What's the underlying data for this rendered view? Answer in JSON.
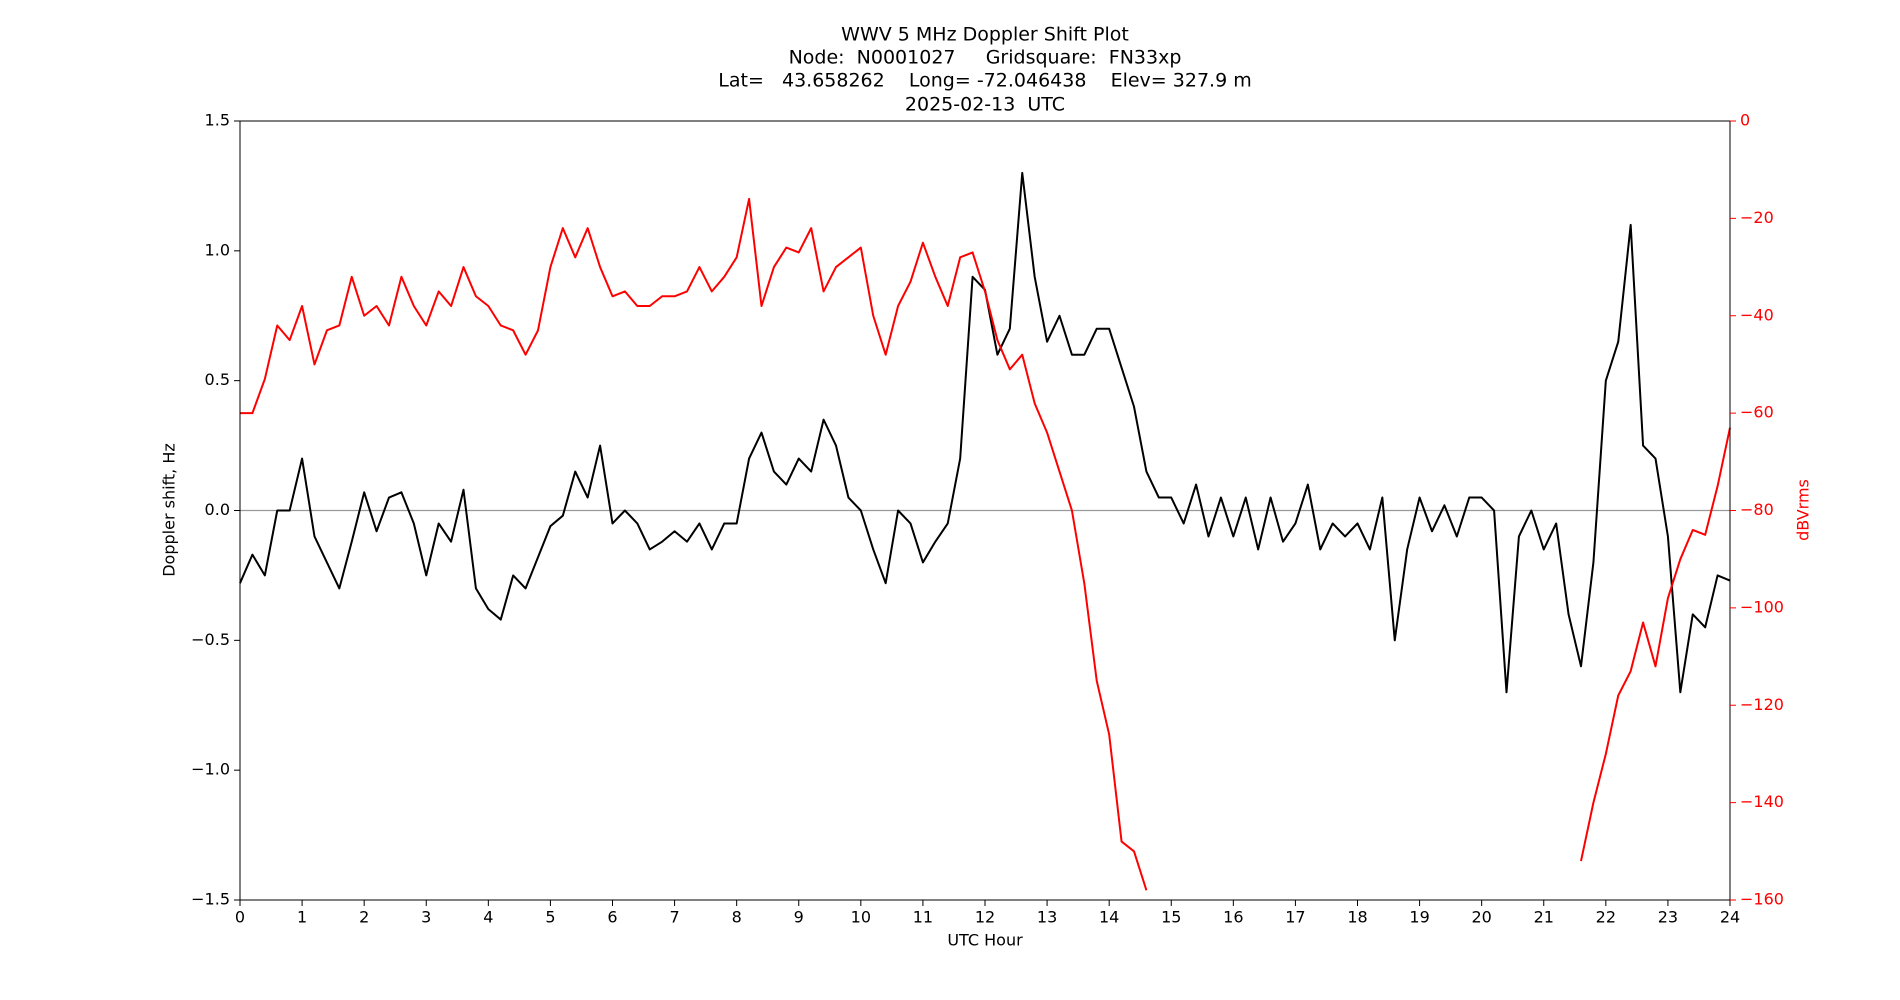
{
  "chart_data": {
    "type": "line",
    "title": [
      "WWV 5 MHz Doppler Shift Plot",
      "Node:  N0001027     Gridsquare:  FN33xp",
      "Lat=   43.658262    Long= -72.046438    Elev= 327.9 m",
      "2025-02-13  UTC"
    ],
    "xlabel": "UTC Hour",
    "ylabel": "Doppler shift, Hz",
    "y2label": "dBVrms",
    "xlim": [
      0,
      24
    ],
    "xticks": [
      0,
      1,
      2,
      3,
      4,
      5,
      6,
      7,
      8,
      9,
      10,
      11,
      12,
      13,
      14,
      15,
      16,
      17,
      18,
      19,
      20,
      21,
      22,
      23,
      24
    ],
    "ylim": [
      -1.5,
      1.5
    ],
    "yticks": [
      {
        "value": -1.5,
        "label": "−1.5"
      },
      {
        "value": -1,
        "label": "−1.0"
      },
      {
        "value": -0.5,
        "label": "−0.5"
      },
      {
        "value": 0,
        "label": "0.0"
      },
      0.5,
      {
        "value": 1,
        "label": "1.0"
      },
      1.5
    ],
    "y2lim": [
      -160,
      0
    ],
    "y2ticks": [
      0,
      {
        "value": -20,
        "label": "−20"
      },
      {
        "value": -40,
        "label": "−40"
      },
      {
        "value": -60,
        "label": "−60"
      },
      {
        "value": -80,
        "label": "−80"
      },
      {
        "value": -100,
        "label": "−100"
      },
      {
        "value": -120,
        "label": "−120"
      },
      {
        "value": -140,
        "label": "−140"
      },
      {
        "value": -160,
        "label": "−160"
      }
    ],
    "y2color": "#ff0000",
    "hline": 0,
    "hline_color": "#999999",
    "x": [
      0,
      0.2,
      0.4,
      0.6,
      0.8,
      1,
      1.2,
      1.4,
      1.6,
      1.8,
      2,
      2.2,
      2.4,
      2.6,
      2.8,
      3,
      3.2,
      3.4,
      3.6,
      3.8,
      4,
      4.2,
      4.4,
      4.6,
      4.8,
      5,
      5.2,
      5.4,
      5.6,
      5.8,
      6,
      6.2,
      6.4,
      6.6,
      6.8,
      7,
      7.2,
      7.4,
      7.6,
      7.8,
      8,
      8.2,
      8.4,
      8.6,
      8.8,
      9,
      9.2,
      9.4,
      9.6,
      9.8,
      10,
      10.2,
      10.4,
      10.6,
      10.8,
      11,
      11.2,
      11.4,
      11.6,
      11.8,
      12,
      12.2,
      12.4,
      12.6,
      12.8,
      13,
      13.2,
      13.4,
      13.6,
      13.8,
      14,
      14.2,
      14.4,
      14.6,
      14.8,
      15,
      15.2,
      15.4,
      15.6,
      15.8,
      16,
      16.2,
      16.4,
      16.6,
      16.8,
      17,
      17.2,
      17.4,
      17.6,
      17.8,
      18,
      18.2,
      18.4,
      18.6,
      18.8,
      19,
      19.2,
      19.4,
      19.6,
      19.8,
      20,
      20.2,
      20.4,
      20.6,
      20.8,
      21,
      21.2,
      21.4,
      21.6,
      21.8,
      22,
      22.2,
      22.4,
      22.6,
      22.8,
      23,
      23.2,
      23.4,
      23.6,
      23.8,
      24
    ],
    "series": [
      {
        "color": "#000000",
        "values": [
          -0.28,
          -0.17,
          -0.25,
          0.0,
          0.0,
          0.2,
          -0.1,
          -0.2,
          -0.3,
          -0.12,
          0.07,
          -0.08,
          0.05,
          0.07,
          -0.05,
          -0.25,
          -0.05,
          -0.12,
          0.08,
          -0.3,
          -0.38,
          -0.42,
          -0.25,
          -0.3,
          -0.18,
          -0.06,
          -0.02,
          0.15,
          0.05,
          0.25,
          -0.05,
          0.0,
          -0.05,
          -0.15,
          -0.12,
          -0.08,
          -0.12,
          -0.05,
          -0.15,
          -0.05,
          -0.05,
          0.2,
          0.3,
          0.15,
          0.1,
          0.2,
          0.15,
          0.35,
          0.25,
          0.05,
          0.0,
          -0.15,
          -0.28,
          0.0,
          -0.05,
          -0.2,
          -0.12,
          -0.05,
          0.2,
          0.9,
          0.85,
          0.6,
          0.7,
          1.3,
          0.9,
          0.65,
          0.75,
          0.6,
          0.6,
          0.7,
          0.7,
          0.55,
          0.4,
          0.15,
          0.05,
          0.05,
          -0.05,
          0.1,
          -0.1,
          0.05,
          -0.1,
          0.05,
          -0.15,
          0.05,
          -0.12,
          -0.05,
          0.1,
          -0.15,
          -0.05,
          -0.1,
          -0.05,
          -0.15,
          0.05,
          -0.5,
          -0.15,
          0.05,
          -0.08,
          0.02,
          -0.1,
          0.05,
          0.05,
          0.0,
          -0.7,
          -0.1,
          0.0,
          -0.15,
          -0.05,
          -0.4,
          -0.6,
          -0.2,
          0.5,
          0.65,
          1.1,
          0.25,
          0.2,
          -0.1,
          -0.7,
          -0.4,
          -0.45,
          -0.25,
          -0.27
        ]
      },
      {
        "color": "#ff0000",
        "axis": "y2",
        "values": [
          -60,
          -60,
          -53,
          -42,
          -45,
          -38,
          -50,
          -43,
          -42,
          -32,
          -40,
          -38,
          -42,
          -32,
          -38,
          -42,
          -35,
          -38,
          -30,
          -36,
          -38,
          -42,
          -43,
          -48,
          -43,
          -30,
          -22,
          -28,
          -22,
          -30,
          -36,
          -35,
          -38,
          -38,
          -36,
          -36,
          -35,
          -30,
          -35,
          -32,
          -28,
          -16,
          -38,
          -30,
          -26,
          -27,
          -22,
          -35,
          -30,
          -28,
          -26,
          -40,
          -48,
          -38,
          -33,
          -25,
          -32,
          -38,
          -28,
          -27,
          -35,
          -45,
          -51,
          -48,
          -58,
          -64,
          -72,
          -80,
          -95,
          -115,
          -126,
          -148,
          -150,
          -158,
          null,
          null,
          null,
          null,
          null,
          null,
          null,
          null,
          null,
          null,
          null,
          null,
          null,
          null,
          null,
          null,
          null,
          null,
          null,
          null,
          null,
          null,
          null,
          null,
          null,
          null,
          null,
          null,
          null,
          null,
          null,
          null,
          null,
          null,
          -152,
          -140,
          -130,
          -118,
          -113,
          -103,
          -112,
          -98,
          -90,
          -84,
          -85,
          -75,
          -63
        ]
      }
    ]
  }
}
